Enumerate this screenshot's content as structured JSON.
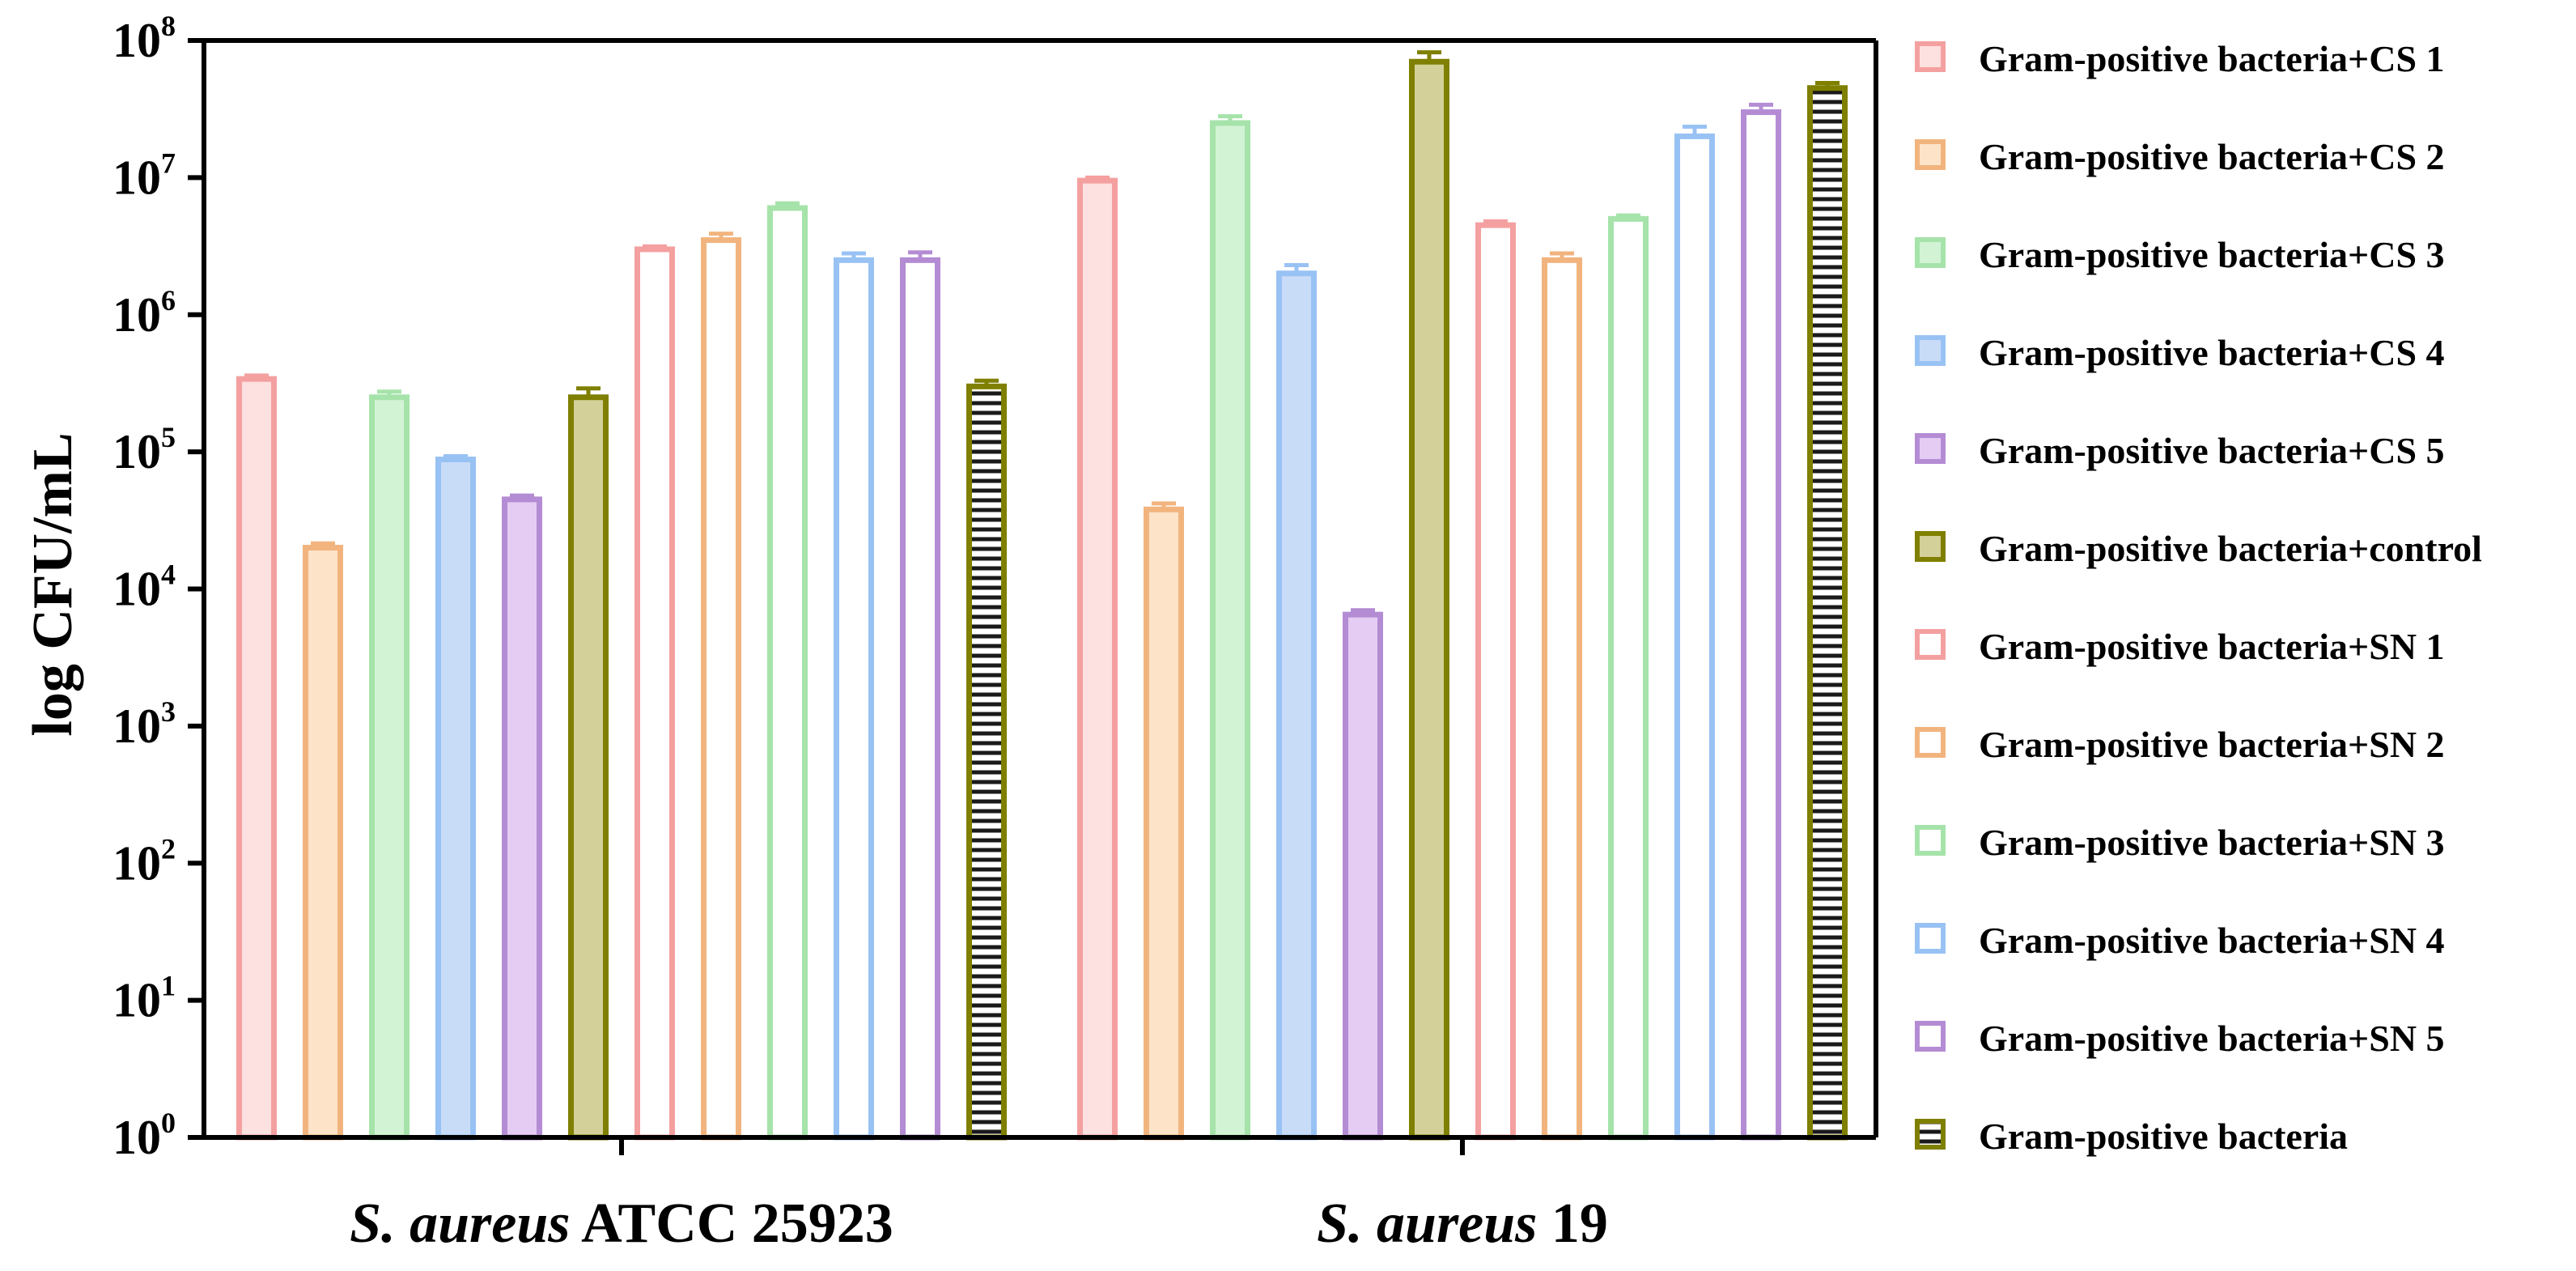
{
  "chart_data": {
    "type": "bar",
    "title": "",
    "xlabel": "",
    "ylabel": "log CFU/mL",
    "yscale": "log",
    "ylim": [
      1,
      100000000
    ],
    "y_ticks": [
      {
        "value": 1,
        "base": "10",
        "exp": "0"
      },
      {
        "value": 10,
        "base": "10",
        "exp": "1"
      },
      {
        "value": 100,
        "base": "10",
        "exp": "2"
      },
      {
        "value": 1000,
        "base": "10",
        "exp": "3"
      },
      {
        "value": 10000,
        "base": "10",
        "exp": "4"
      },
      {
        "value": 100000,
        "base": "10",
        "exp": "5"
      },
      {
        "value": 1000000,
        "base": "10",
        "exp": "6"
      },
      {
        "value": 10000000,
        "base": "10",
        "exp": "7"
      },
      {
        "value": 100000000,
        "base": "10",
        "exp": "8"
      }
    ],
    "categories": [
      {
        "italic": "S. aureus",
        "rest": " ATCC 25923"
      },
      {
        "italic": "S. aureus",
        "rest": " 19"
      }
    ],
    "legend_position": "right",
    "series": [
      {
        "name": "Gram-positive bacteria+CS 1",
        "color": "#f4a0a0",
        "fill": "#fde0e0",
        "pattern": "solid",
        "values": [
          340000,
          9500000
        ],
        "errors": [
          20000,
          500000
        ]
      },
      {
        "name": "Gram-positive bacteria+CS 2",
        "color": "#f2b47e",
        "fill": "#fde3c8",
        "pattern": "solid",
        "values": [
          20000,
          38000
        ],
        "errors": [
          1500,
          4000
        ]
      },
      {
        "name": "Gram-positive bacteria+CS 3",
        "color": "#a6e3aa",
        "fill": "#d3f3d5",
        "pattern": "solid",
        "values": [
          250000,
          25000000
        ],
        "errors": [
          25000,
          3000000
        ]
      },
      {
        "name": "Gram-positive bacteria+CS 4",
        "color": "#99c2f4",
        "fill": "#c9dcf7",
        "pattern": "solid",
        "values": [
          88000,
          2000000
        ],
        "errors": [
          5000,
          300000
        ]
      },
      {
        "name": "Gram-positive bacteria+CS 5",
        "color": "#b48cd4",
        "fill": "#e4ccf3",
        "pattern": "solid",
        "values": [
          45000,
          6500
        ],
        "errors": [
          3000,
          500
        ]
      },
      {
        "name": "Gram-positive bacteria+control",
        "color": "#7f7f00",
        "fill": "#d4d09a",
        "pattern": "solid",
        "values": [
          250000,
          70000000
        ],
        "errors": [
          40000,
          12000000
        ]
      },
      {
        "name": "Gram-positive bacteria+SN 1",
        "color": "#f4a0a0",
        "fill": "#ffffff",
        "pattern": "open",
        "values": [
          3000000,
          4500000
        ],
        "errors": [
          150000,
          300000
        ]
      },
      {
        "name": "Gram-positive bacteria+SN 2",
        "color": "#f2b47e",
        "fill": "#ffffff",
        "pattern": "open",
        "values": [
          3500000,
          2500000
        ],
        "errors": [
          400000,
          300000
        ]
      },
      {
        "name": "Gram-positive bacteria+SN 3",
        "color": "#a6e3aa",
        "fill": "#ffffff",
        "pattern": "open",
        "values": [
          6000000,
          5000000
        ],
        "errors": [
          500000,
          300000
        ]
      },
      {
        "name": "Gram-positive bacteria+SN 4",
        "color": "#99c2f4",
        "fill": "#ffffff",
        "pattern": "open",
        "values": [
          2500000,
          20000000
        ],
        "errors": [
          300000,
          3500000
        ]
      },
      {
        "name": "Gram-positive bacteria+SN 5",
        "color": "#b48cd4",
        "fill": "#ffffff",
        "pattern": "open",
        "values": [
          2500000,
          30000000
        ],
        "errors": [
          350000,
          4000000
        ]
      },
      {
        "name": "Gram-positive bacteria",
        "color": "#7f7f00",
        "fill": "#ffffff",
        "pattern": "horizontal-lines",
        "values": [
          300000,
          45000000
        ],
        "errors": [
          30000,
          4000000
        ]
      }
    ]
  }
}
